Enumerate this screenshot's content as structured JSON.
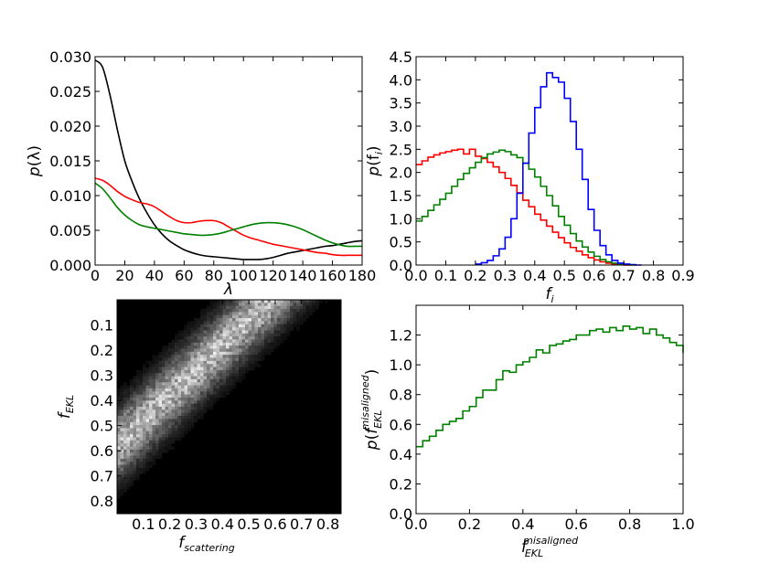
{
  "chart_data": [
    {
      "type": "line",
      "xlabel": "λ",
      "ylabel_main": "p",
      "ylabel_arg": "(λ)",
      "xlim": [
        0,
        180
      ],
      "ylim": [
        0,
        0.03
      ],
      "xticks": [
        "0",
        "20",
        "40",
        "60",
        "80",
        "100",
        "120",
        "140",
        "160",
        "180"
      ],
      "yticks": [
        "0.000",
        "0.005",
        "0.010",
        "0.015",
        "0.020",
        "0.025",
        "0.030"
      ],
      "x": [
        0,
        5,
        10,
        15,
        20,
        25,
        30,
        35,
        40,
        45,
        50,
        55,
        60,
        65,
        70,
        75,
        80,
        85,
        90,
        95,
        100,
        105,
        110,
        115,
        120,
        125,
        130,
        135,
        140,
        145,
        150,
        155,
        160,
        165,
        170,
        175,
        180
      ],
      "series": [
        {
          "color": "#000000",
          "values": [
            0.0295,
            0.0285,
            0.0245,
            0.0195,
            0.015,
            0.012,
            0.0095,
            0.0075,
            0.0058,
            0.0045,
            0.0035,
            0.0028,
            0.0022,
            0.0018,
            0.0015,
            0.0013,
            0.0012,
            0.0011,
            0.001,
            0.0009,
            0.0008,
            0.0008,
            0.0008,
            0.0009,
            0.0011,
            0.0014,
            0.0017,
            0.0019,
            0.0021,
            0.0023,
            0.0025,
            0.0027,
            0.0028,
            0.003,
            0.0032,
            0.0034,
            0.0035
          ]
        },
        {
          "color": "#ff0000",
          "values": [
            0.0125,
            0.0122,
            0.0115,
            0.0106,
            0.0099,
            0.0094,
            0.009,
            0.0088,
            0.0084,
            0.0077,
            0.007,
            0.0064,
            0.0061,
            0.0061,
            0.0063,
            0.0064,
            0.0064,
            0.0061,
            0.0055,
            0.0049,
            0.0043,
            0.0039,
            0.0036,
            0.0033,
            0.003,
            0.0028,
            0.0026,
            0.0024,
            0.0022,
            0.002,
            0.0018,
            0.0017,
            0.0015,
            0.0014,
            0.0014,
            0.0014,
            0.0014
          ]
        },
        {
          "color": "#008000",
          "values": [
            0.0118,
            0.011,
            0.0097,
            0.0083,
            0.0072,
            0.0064,
            0.0058,
            0.0055,
            0.0053,
            0.0051,
            0.0049,
            0.0047,
            0.0045,
            0.0044,
            0.0043,
            0.0043,
            0.0044,
            0.0046,
            0.0049,
            0.0052,
            0.0055,
            0.0058,
            0.006,
            0.0061,
            0.0061,
            0.006,
            0.0058,
            0.0055,
            0.0051,
            0.0046,
            0.0041,
            0.0036,
            0.0032,
            0.0029,
            0.0027,
            0.0027,
            0.0027
          ]
        }
      ]
    },
    {
      "type": "histogram",
      "xlabel_main": "f",
      "xlabel_sub": "i",
      "ylabel_main": "p",
      "ylabel_arg": "(f",
      "ylabel_sub": "i",
      "ylabel_close": ")",
      "xlim": [
        0,
        0.9
      ],
      "ylim": [
        0,
        4.5
      ],
      "xticks": [
        "0.0",
        "0.1",
        "0.2",
        "0.3",
        "0.4",
        "0.5",
        "0.6",
        "0.7",
        "0.8",
        "0.9"
      ],
      "yticks": [
        "0.0",
        "0.5",
        "1.0",
        "1.5",
        "2.0",
        "2.5",
        "3.0",
        "3.5",
        "4.0",
        "4.5"
      ],
      "bin_width": 0.02,
      "series": [
        {
          "color": "#ff0000",
          "bin_start": 0.0,
          "values": [
            2.17,
            2.25,
            2.33,
            2.38,
            2.42,
            2.45,
            2.48,
            2.5,
            2.4,
            2.5,
            2.35,
            2.3,
            2.22,
            2.12,
            2.0,
            1.87,
            1.72,
            1.56,
            1.4,
            1.26,
            1.1,
            0.97,
            0.84,
            0.71,
            0.59,
            0.48,
            0.38,
            0.3,
            0.22,
            0.16,
            0.11,
            0.07,
            0.04,
            0.02,
            0.01,
            0.0
          ]
        },
        {
          "color": "#008000",
          "bin_start": 0.0,
          "values": [
            0.95,
            1.05,
            1.18,
            1.3,
            1.42,
            1.55,
            1.7,
            1.85,
            1.98,
            2.1,
            2.22,
            2.32,
            2.4,
            2.44,
            2.48,
            2.45,
            2.38,
            2.32,
            2.2,
            2.07,
            1.9,
            1.7,
            1.5,
            1.28,
            1.05,
            0.86,
            0.68,
            0.52,
            0.39,
            0.28,
            0.19,
            0.12,
            0.07,
            0.04,
            0.02,
            0.01,
            0.0
          ]
        },
        {
          "color": "#0000ff",
          "bin_start": 0.2,
          "values": [
            0.02,
            0.05,
            0.1,
            0.2,
            0.35,
            0.6,
            1.0,
            1.55,
            2.2,
            2.85,
            3.4,
            3.85,
            4.15,
            4.05,
            3.95,
            3.6,
            3.1,
            2.5,
            1.85,
            1.2,
            0.75,
            0.42,
            0.22,
            0.1,
            0.04,
            0.02,
            0.01,
            0.0
          ]
        }
      ]
    },
    {
      "type": "heatmap",
      "xlabel_main": "f",
      "xlabel_sub": "scattering",
      "ylabel_main": "f",
      "ylabel_sub": "EKL",
      "xlim": [
        0,
        0.85
      ],
      "ylim": [
        0,
        0.85
      ],
      "xticks": [
        "0.1",
        "0.2",
        "0.3",
        "0.4",
        "0.5",
        "0.6",
        "0.7",
        "0.8"
      ],
      "yticks": [
        "0.1",
        "0.2",
        "0.3",
        "0.4",
        "0.5",
        "0.6",
        "0.7",
        "0.8"
      ],
      "colormap": "gray",
      "band": {
        "ridge_at_x0": 0.58,
        "ridge_slope": -1.0,
        "width": 0.13
      }
    },
    {
      "type": "histogram",
      "xlabel_main": "f",
      "xlabel_sub": "EKL",
      "xlabel_sup": "misaligned",
      "ylabel_main": "p",
      "ylabel_sub": "EKL",
      "ylabel_sup": "misaligned",
      "xlim": [
        0,
        1
      ],
      "ylim": [
        0,
        1.4
      ],
      "xticks": [
        "0.0",
        "0.2",
        "0.4",
        "0.6",
        "0.8",
        "1.0"
      ],
      "yticks": [
        "0.0",
        "0.2",
        "0.4",
        "0.6",
        "0.8",
        "1.0",
        "1.2"
      ],
      "bin_width": 0.025,
      "series": [
        {
          "color": "#008000",
          "bin_start": 0.0,
          "values": [
            0.45,
            0.49,
            0.52,
            0.56,
            0.6,
            0.62,
            0.64,
            0.69,
            0.72,
            0.78,
            0.83,
            0.83,
            0.9,
            0.96,
            0.95,
            1.0,
            1.02,
            1.05,
            1.1,
            1.08,
            1.13,
            1.14,
            1.16,
            1.17,
            1.2,
            1.2,
            1.23,
            1.24,
            1.22,
            1.25,
            1.23,
            1.26,
            1.24,
            1.25,
            1.21,
            1.24,
            1.2,
            1.18,
            1.15,
            1.13,
            1.08
          ]
        }
      ]
    }
  ]
}
